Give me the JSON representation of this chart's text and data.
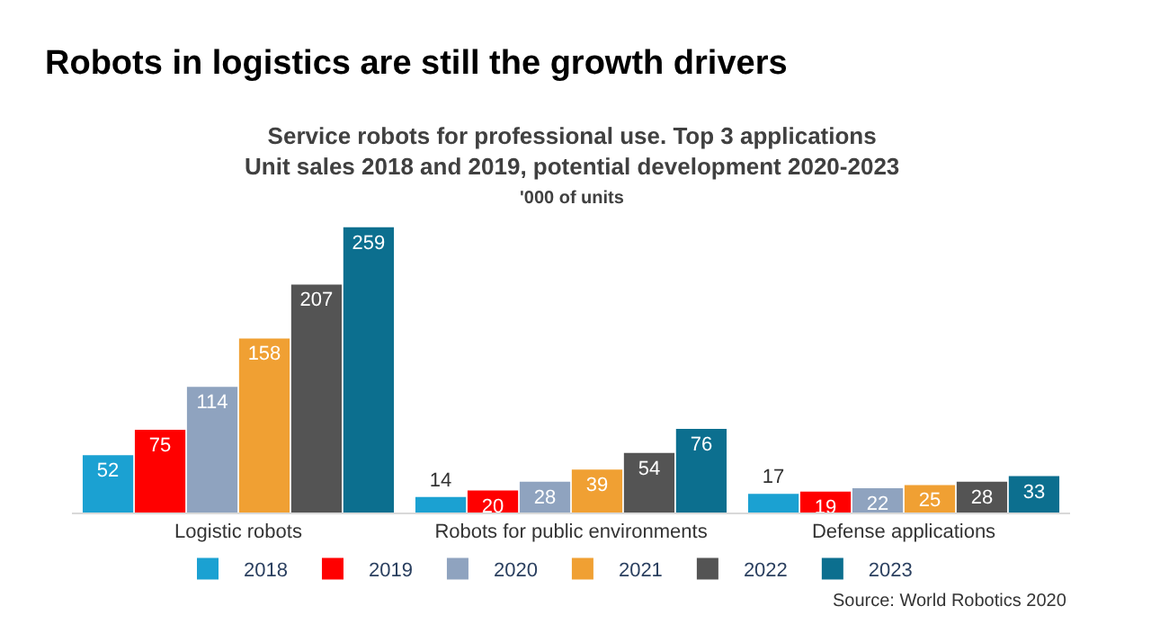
{
  "chart_data": {
    "type": "bar",
    "title": "Robots in logistics are still the growth drivers",
    "subtitle": "Service robots for professional use. Top 3 applications\nUnit sales 2018 and 2019, potential development 2020-2023",
    "annotations": [
      "'000 of units",
      "Source: World Robotics 2020"
    ],
    "categories": [
      "Logistic robots",
      "Robots for public environments",
      "Defense applications"
    ],
    "series": [
      {
        "name": "2018",
        "color": "#1ba1d2",
        "values": [
          52,
          14,
          17
        ]
      },
      {
        "name": "2019",
        "color": "#ff0000",
        "values": [
          75,
          20,
          19
        ]
      },
      {
        "name": "2020",
        "color": "#8fa3bf",
        "values": [
          114,
          28,
          22
        ]
      },
      {
        "name": "2021",
        "color": "#f0a033",
        "values": [
          158,
          39,
          25
        ]
      },
      {
        "name": "2022",
        "color": "#545454",
        "values": [
          207,
          54,
          28
        ]
      },
      {
        "name": "2023",
        "color": "#0c6f8f",
        "values": [
          259,
          76,
          33
        ]
      }
    ],
    "data_labels": true,
    "legend": "bottom",
    "tick_labels": "x"
  }
}
